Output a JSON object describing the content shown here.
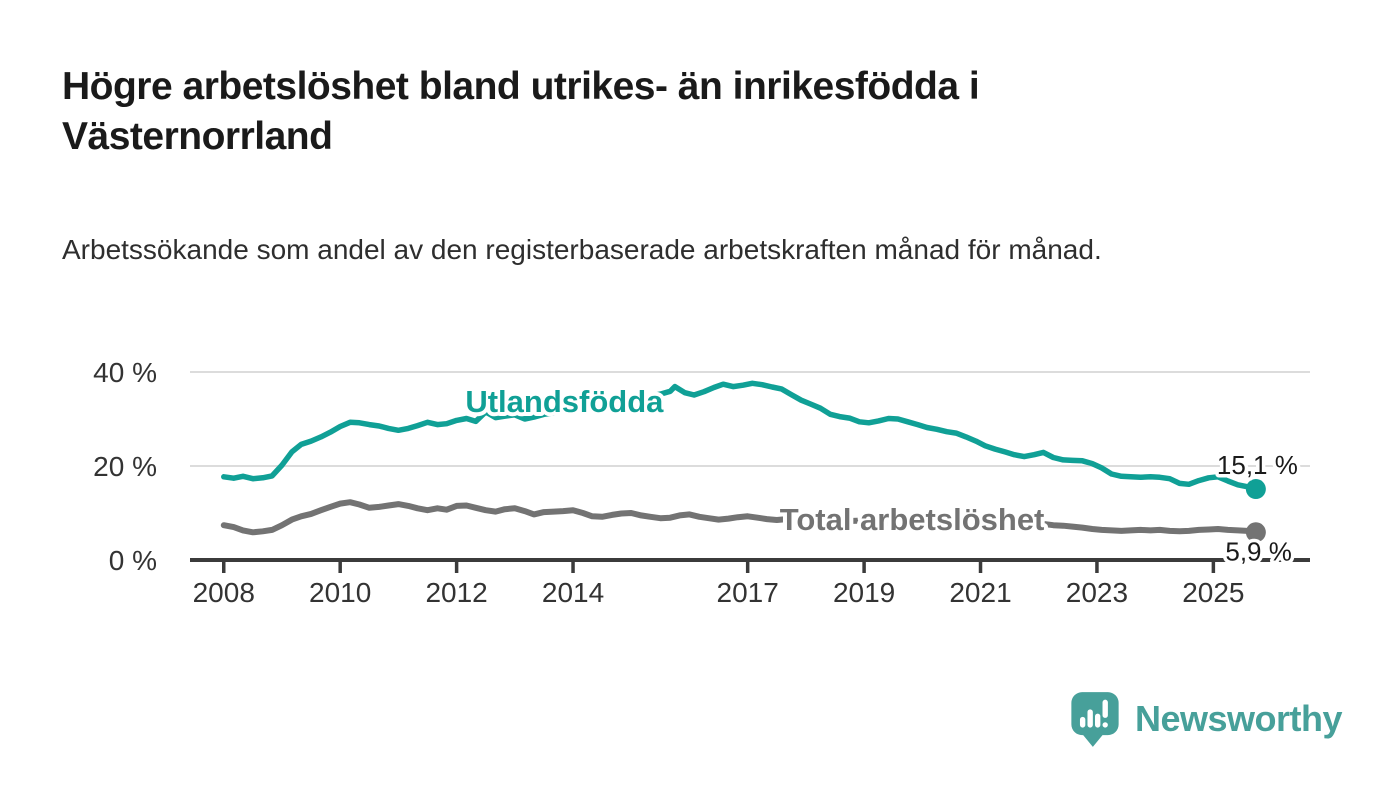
{
  "header": {
    "title": "Högre arbetslöshet bland utrikes- än inrikesfödda i Västernorrland",
    "subtitle": "Arbetssökande som andel av den registerbaserade arbetskraften månad för månad."
  },
  "footer": {
    "brand": "Newsworthy",
    "brand_color": "#47A09A",
    "logo_icon": "speech-bubble-bar-chart-icon"
  },
  "colors": {
    "background": "#ffffff",
    "grid": "#dcdcdc",
    "axis": "#3b3b3b",
    "tick_text": "#333333",
    "end_label_text": "#1a1a1a"
  },
  "chart_data": {
    "type": "line",
    "grid": "horizontal-only",
    "legend_position": "inline-labels-on-lines",
    "x_axis": {
      "range": [
        2007.42,
        2026.66
      ],
      "ticks": [
        2008,
        2010,
        2012,
        2014,
        2017,
        2019,
        2021,
        2023,
        2025
      ]
    },
    "y_axis": {
      "range": [
        0,
        42.5
      ],
      "ticks": [
        0,
        20,
        40
      ],
      "tick_suffix": " %"
    },
    "series": [
      {
        "name": "Total arbetslöshet",
        "color": "#737373",
        "line_width": 6,
        "label_anchor": {
          "x": 2017.55,
          "y": 8.7
        },
        "end_value": 5.9,
        "end_label": "5,9 %",
        "end_label_position": "below",
        "points": [
          [
            2008.0,
            7.4
          ],
          [
            2008.17,
            7.0
          ],
          [
            2008.33,
            6.3
          ],
          [
            2008.5,
            5.9
          ],
          [
            2008.67,
            6.1
          ],
          [
            2008.83,
            6.4
          ],
          [
            2009.0,
            7.4
          ],
          [
            2009.17,
            8.6
          ],
          [
            2009.33,
            9.3
          ],
          [
            2009.5,
            9.8
          ],
          [
            2009.67,
            10.6
          ],
          [
            2009.83,
            11.3
          ],
          [
            2010.0,
            12.0
          ],
          [
            2010.17,
            12.3
          ],
          [
            2010.33,
            11.8
          ],
          [
            2010.5,
            11.1
          ],
          [
            2010.67,
            11.3
          ],
          [
            2010.83,
            11.6
          ],
          [
            2011.0,
            11.9
          ],
          [
            2011.17,
            11.5
          ],
          [
            2011.33,
            11.0
          ],
          [
            2011.5,
            10.6
          ],
          [
            2011.67,
            11.0
          ],
          [
            2011.83,
            10.7
          ],
          [
            2012.0,
            11.5
          ],
          [
            2012.17,
            11.6
          ],
          [
            2012.33,
            11.1
          ],
          [
            2012.5,
            10.6
          ],
          [
            2012.67,
            10.3
          ],
          [
            2012.83,
            10.8
          ],
          [
            2013.0,
            11.0
          ],
          [
            2013.17,
            10.4
          ],
          [
            2013.33,
            9.7
          ],
          [
            2013.5,
            10.2
          ],
          [
            2013.67,
            10.3
          ],
          [
            2013.83,
            10.4
          ],
          [
            2014.0,
            10.6
          ],
          [
            2014.17,
            10.0
          ],
          [
            2014.33,
            9.3
          ],
          [
            2014.5,
            9.2
          ],
          [
            2014.67,
            9.6
          ],
          [
            2014.83,
            9.9
          ],
          [
            2015.0,
            10.0
          ],
          [
            2015.17,
            9.5
          ],
          [
            2015.33,
            9.2
          ],
          [
            2015.5,
            8.9
          ],
          [
            2015.67,
            9.0
          ],
          [
            2015.83,
            9.5
          ],
          [
            2016.0,
            9.7
          ],
          [
            2016.17,
            9.2
          ],
          [
            2016.33,
            8.9
          ],
          [
            2016.5,
            8.6
          ],
          [
            2016.67,
            8.8
          ],
          [
            2016.83,
            9.1
          ],
          [
            2017.0,
            9.3
          ],
          [
            2017.17,
            9.0
          ],
          [
            2017.33,
            8.7
          ],
          [
            2017.5,
            8.5
          ],
          [
            2017.67,
            8.7
          ],
          [
            2017.83,
            8.9
          ],
          [
            2018.0,
            8.8
          ],
          [
            2018.25,
            8.4
          ],
          [
            2018.5,
            8.1
          ],
          [
            2018.75,
            8.3
          ],
          [
            2019.0,
            8.4
          ],
          [
            2019.25,
            8.0
          ],
          [
            2019.5,
            7.8
          ],
          [
            2019.75,
            8.0
          ],
          [
            2020.0,
            8.3
          ],
          [
            2020.25,
            8.9
          ],
          [
            2020.5,
            9.3
          ],
          [
            2020.75,
            9.0
          ],
          [
            2021.0,
            8.7
          ],
          [
            2021.25,
            8.2
          ],
          [
            2021.5,
            7.9
          ],
          [
            2021.75,
            7.7
          ],
          [
            2022.0,
            7.8
          ],
          [
            2022.25,
            7.4
          ],
          [
            2022.42,
            7.3
          ],
          [
            2022.58,
            7.1
          ],
          [
            2022.75,
            6.9
          ],
          [
            2022.92,
            6.6
          ],
          [
            2023.08,
            6.4
          ],
          [
            2023.25,
            6.3
          ],
          [
            2023.42,
            6.2
          ],
          [
            2023.58,
            6.3
          ],
          [
            2023.75,
            6.4
          ],
          [
            2023.92,
            6.3
          ],
          [
            2024.08,
            6.4
          ],
          [
            2024.25,
            6.2
          ],
          [
            2024.42,
            6.1
          ],
          [
            2024.58,
            6.2
          ],
          [
            2024.75,
            6.4
          ],
          [
            2024.92,
            6.5
          ],
          [
            2025.08,
            6.6
          ],
          [
            2025.25,
            6.4
          ],
          [
            2025.42,
            6.3
          ],
          [
            2025.58,
            6.2
          ],
          [
            2025.73,
            5.9
          ]
        ]
      },
      {
        "name": "Utlandsfödda",
        "color": "#10A096",
        "line_width": 5.5,
        "label_anchor": {
          "x": 2012.15,
          "y": 33.8
        },
        "end_value": 15.1,
        "end_label": "15,1 %",
        "end_label_position": "above",
        "points": [
          [
            2008.0,
            17.7
          ],
          [
            2008.17,
            17.4
          ],
          [
            2008.33,
            17.8
          ],
          [
            2008.5,
            17.3
          ],
          [
            2008.67,
            17.5
          ],
          [
            2008.83,
            17.9
          ],
          [
            2009.0,
            20.2
          ],
          [
            2009.17,
            23.0
          ],
          [
            2009.33,
            24.6
          ],
          [
            2009.5,
            25.3
          ],
          [
            2009.67,
            26.2
          ],
          [
            2009.83,
            27.2
          ],
          [
            2010.0,
            28.4
          ],
          [
            2010.17,
            29.3
          ],
          [
            2010.33,
            29.2
          ],
          [
            2010.5,
            28.8
          ],
          [
            2010.67,
            28.5
          ],
          [
            2010.83,
            28.0
          ],
          [
            2011.0,
            27.6
          ],
          [
            2011.17,
            28.0
          ],
          [
            2011.33,
            28.6
          ],
          [
            2011.5,
            29.3
          ],
          [
            2011.67,
            28.8
          ],
          [
            2011.83,
            29.0
          ],
          [
            2012.0,
            29.7
          ],
          [
            2012.17,
            30.1
          ],
          [
            2012.33,
            29.5
          ],
          [
            2012.5,
            31.5
          ],
          [
            2012.67,
            30.3
          ],
          [
            2012.83,
            30.6
          ],
          [
            2013.0,
            30.9
          ],
          [
            2013.17,
            30.0
          ],
          [
            2013.33,
            30.4
          ],
          [
            2013.5,
            31.0
          ],
          [
            2013.67,
            31.3
          ],
          [
            2013.83,
            31.8
          ],
          [
            2014.0,
            32.1
          ],
          [
            2014.17,
            32.6
          ],
          [
            2014.33,
            32.3
          ],
          [
            2014.5,
            33.0
          ],
          [
            2014.67,
            33.4
          ],
          [
            2014.83,
            33.8
          ],
          [
            2015.0,
            34.2
          ],
          [
            2015.17,
            34.6
          ],
          [
            2015.33,
            34.9
          ],
          [
            2015.5,
            35.3
          ],
          [
            2015.67,
            35.9
          ],
          [
            2015.75,
            36.9
          ],
          [
            2015.92,
            35.6
          ],
          [
            2016.08,
            35.1
          ],
          [
            2016.25,
            35.8
          ],
          [
            2016.42,
            36.7
          ],
          [
            2016.58,
            37.4
          ],
          [
            2016.75,
            36.9
          ],
          [
            2016.92,
            37.2
          ],
          [
            2017.08,
            37.6
          ],
          [
            2017.25,
            37.3
          ],
          [
            2017.42,
            36.8
          ],
          [
            2017.58,
            36.4
          ],
          [
            2017.75,
            35.2
          ],
          [
            2017.92,
            34.0
          ],
          [
            2018.08,
            33.2
          ],
          [
            2018.25,
            32.3
          ],
          [
            2018.42,
            31.0
          ],
          [
            2018.58,
            30.5
          ],
          [
            2018.75,
            30.2
          ],
          [
            2018.92,
            29.4
          ],
          [
            2019.08,
            29.2
          ],
          [
            2019.25,
            29.6
          ],
          [
            2019.42,
            30.1
          ],
          [
            2019.58,
            30.0
          ],
          [
            2019.75,
            29.4
          ],
          [
            2019.92,
            28.8
          ],
          [
            2020.08,
            28.2
          ],
          [
            2020.25,
            27.8
          ],
          [
            2020.42,
            27.3
          ],
          [
            2020.58,
            27.0
          ],
          [
            2020.75,
            26.2
          ],
          [
            2020.92,
            25.3
          ],
          [
            2021.08,
            24.3
          ],
          [
            2021.25,
            23.6
          ],
          [
            2021.42,
            23.0
          ],
          [
            2021.58,
            22.4
          ],
          [
            2021.75,
            22.0
          ],
          [
            2021.92,
            22.4
          ],
          [
            2022.08,
            22.9
          ],
          [
            2022.25,
            21.8
          ],
          [
            2022.42,
            21.3
          ],
          [
            2022.58,
            21.2
          ],
          [
            2022.75,
            21.1
          ],
          [
            2022.92,
            20.5
          ],
          [
            2023.08,
            19.6
          ],
          [
            2023.25,
            18.3
          ],
          [
            2023.42,
            17.8
          ],
          [
            2023.58,
            17.7
          ],
          [
            2023.75,
            17.6
          ],
          [
            2023.92,
            17.7
          ],
          [
            2024.08,
            17.6
          ],
          [
            2024.25,
            17.3
          ],
          [
            2024.42,
            16.3
          ],
          [
            2024.58,
            16.1
          ],
          [
            2024.75,
            16.9
          ],
          [
            2024.92,
            17.5
          ],
          [
            2025.08,
            17.7
          ],
          [
            2025.25,
            16.8
          ],
          [
            2025.42,
            16.0
          ],
          [
            2025.58,
            15.6
          ],
          [
            2025.73,
            15.1
          ]
        ]
      }
    ]
  }
}
